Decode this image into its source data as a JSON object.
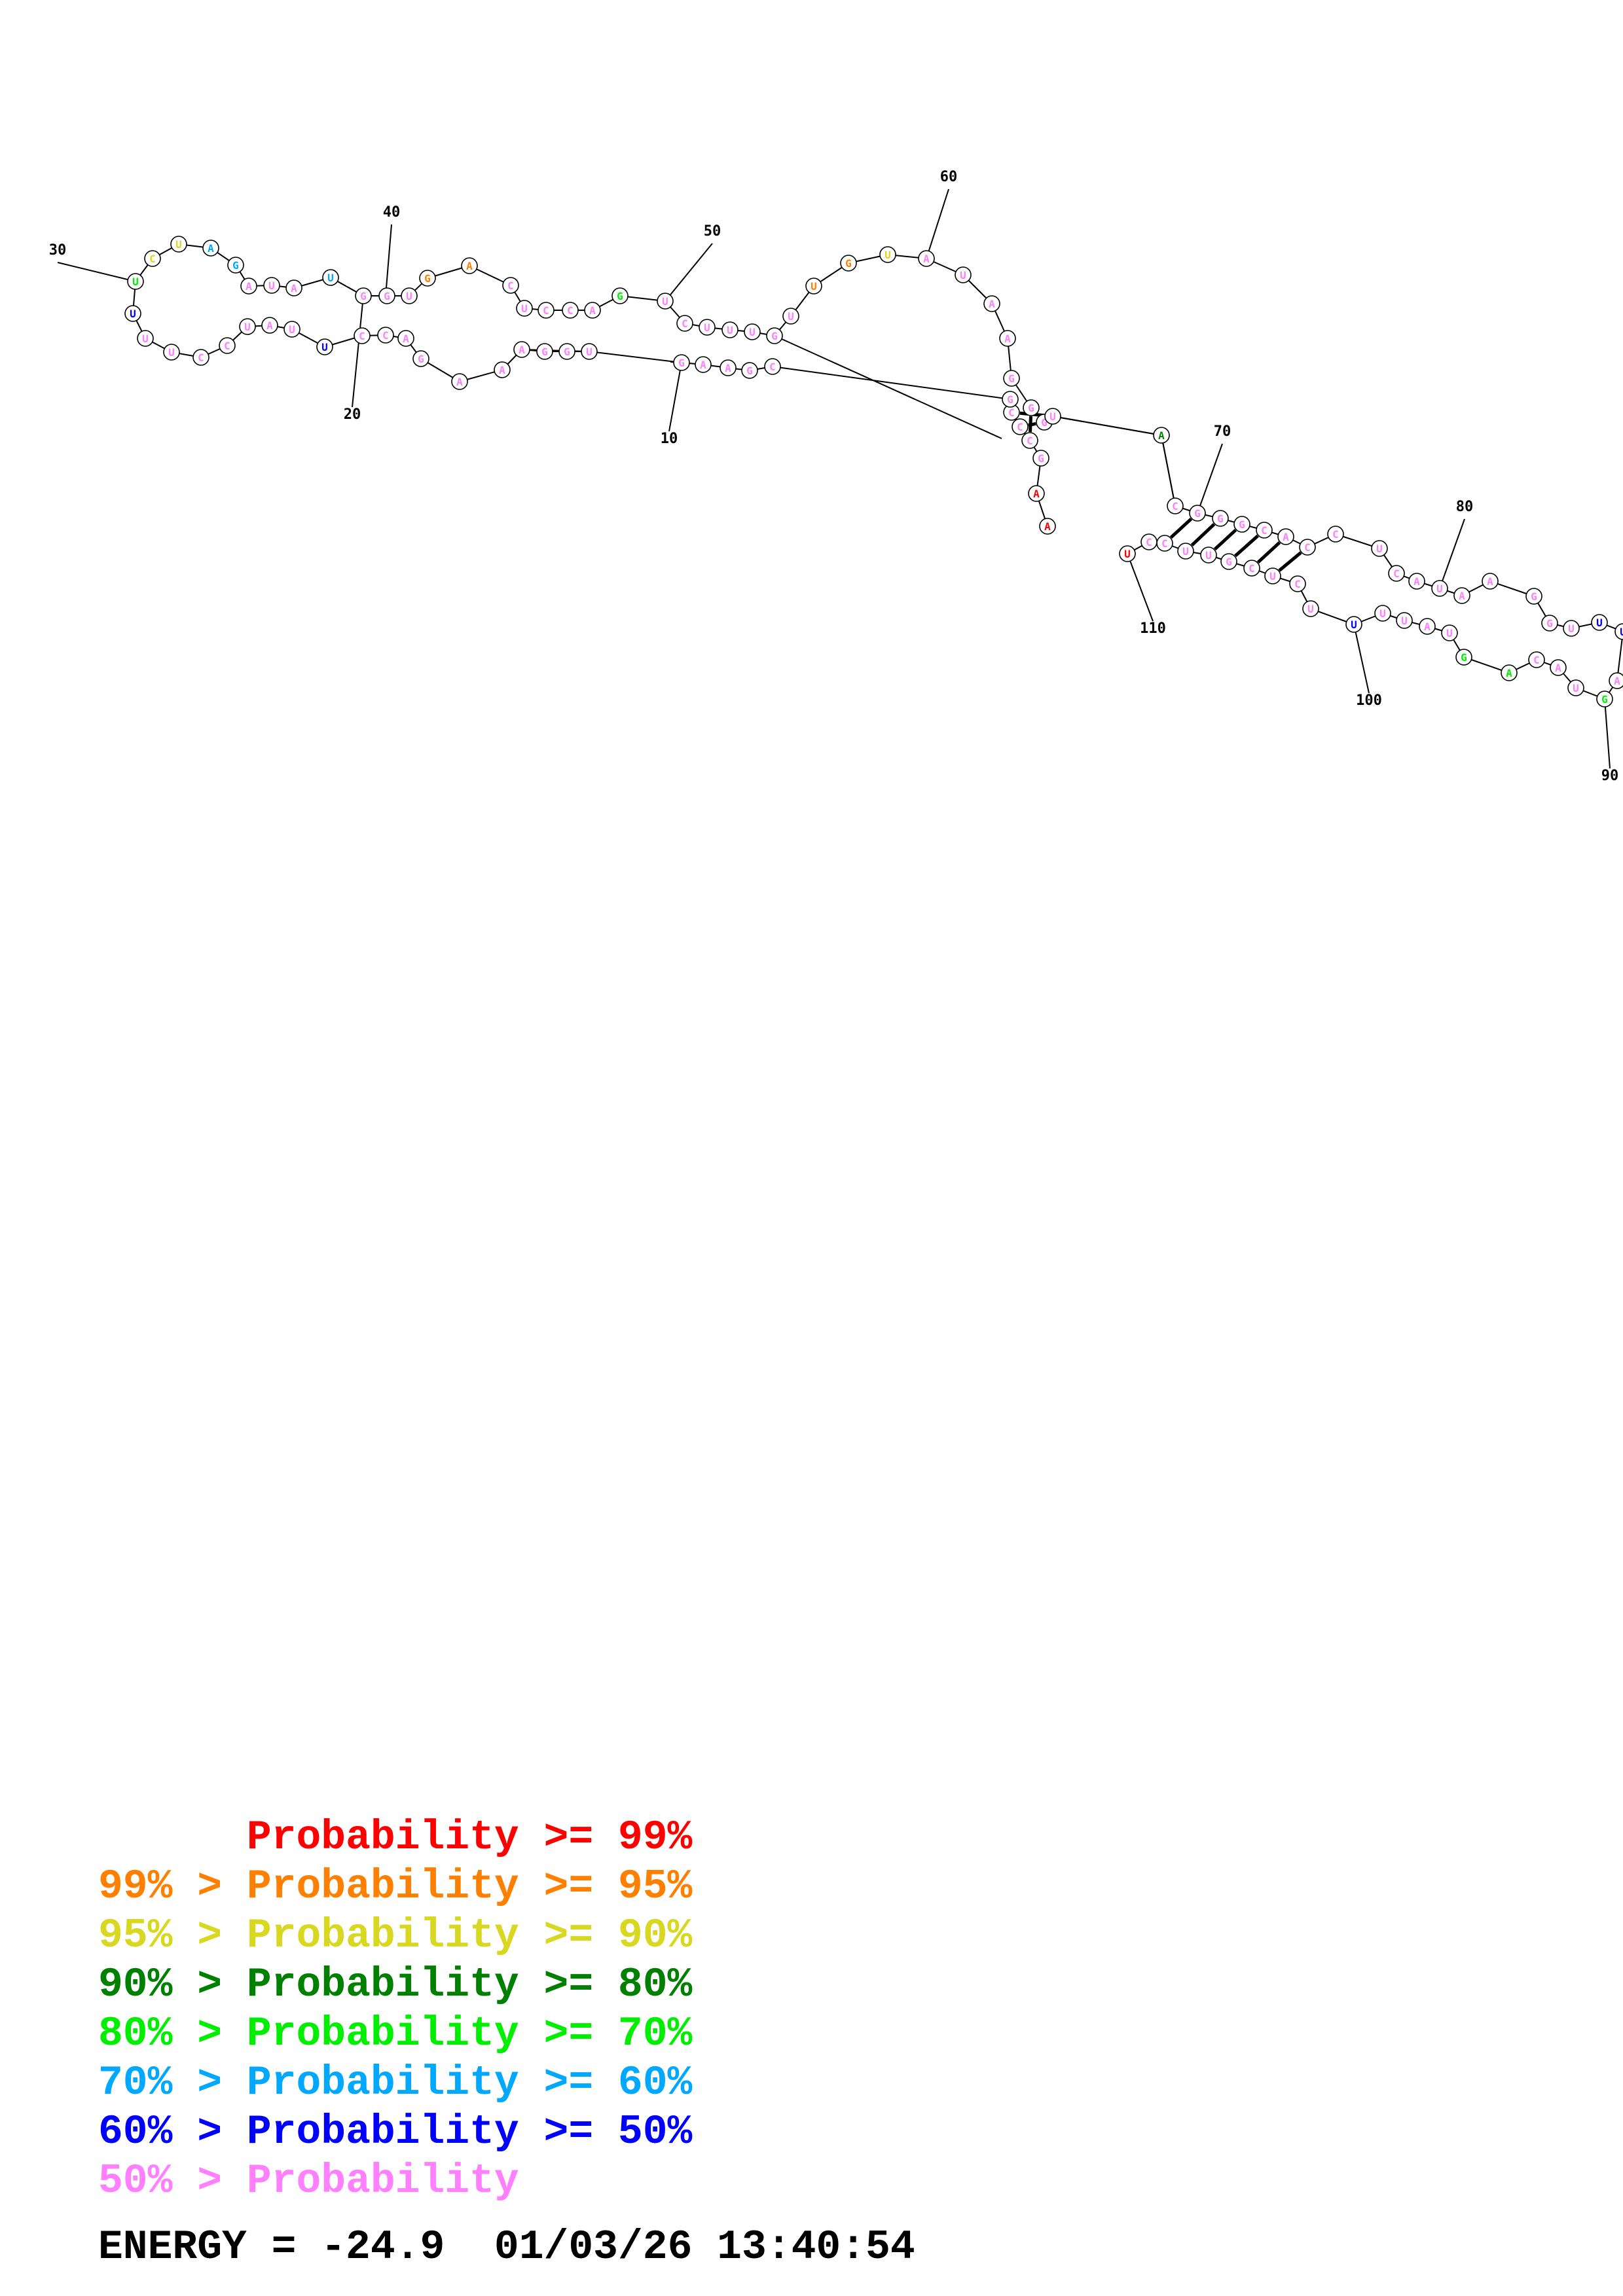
{
  "structure": {
    "nucleotide_count": 112,
    "sequence_start": "AA",
    "position_labels": [
      "10",
      "20",
      "30",
      "40",
      "50",
      "60",
      "70",
      "80",
      "90",
      "100",
      "110"
    ]
  },
  "colors": {
    "p99": "#ff0000",
    "p95": "#ff8000",
    "p90": "#d8d820",
    "p80": "#008000",
    "p70": "#00ee00",
    "p60": "#00a8ff",
    "p50": "#0000ff",
    "low": "#ff80ff"
  },
  "legend": [
    {
      "prefix": "",
      "range": "Probability >= 99%",
      "color": "#ff0000"
    },
    {
      "prefix": "99% > ",
      "range": "Probability >= 95%",
      "color": "#ff8000"
    },
    {
      "prefix": "95% > ",
      "range": "Probability >= 90%",
      "color": "#d8d820"
    },
    {
      "prefix": "90% > ",
      "range": "Probability >= 80%",
      "color": "#008000"
    },
    {
      "prefix": "80% > ",
      "range": "Probability >= 70%",
      "color": "#00ee00"
    },
    {
      "prefix": "70% > ",
      "range": "Probability >= 60%",
      "color": "#00a8ff"
    },
    {
      "prefix": "60% > ",
      "range": "Probability >= 50%",
      "color": "#0000ff"
    },
    {
      "prefix": "50% > ",
      "range": "Probability",
      "color": "#ff80ff"
    }
  ],
  "footer": {
    "energy": "ENERGY = -24.9",
    "timestamp": "01/03/26 13:40:54"
  }
}
